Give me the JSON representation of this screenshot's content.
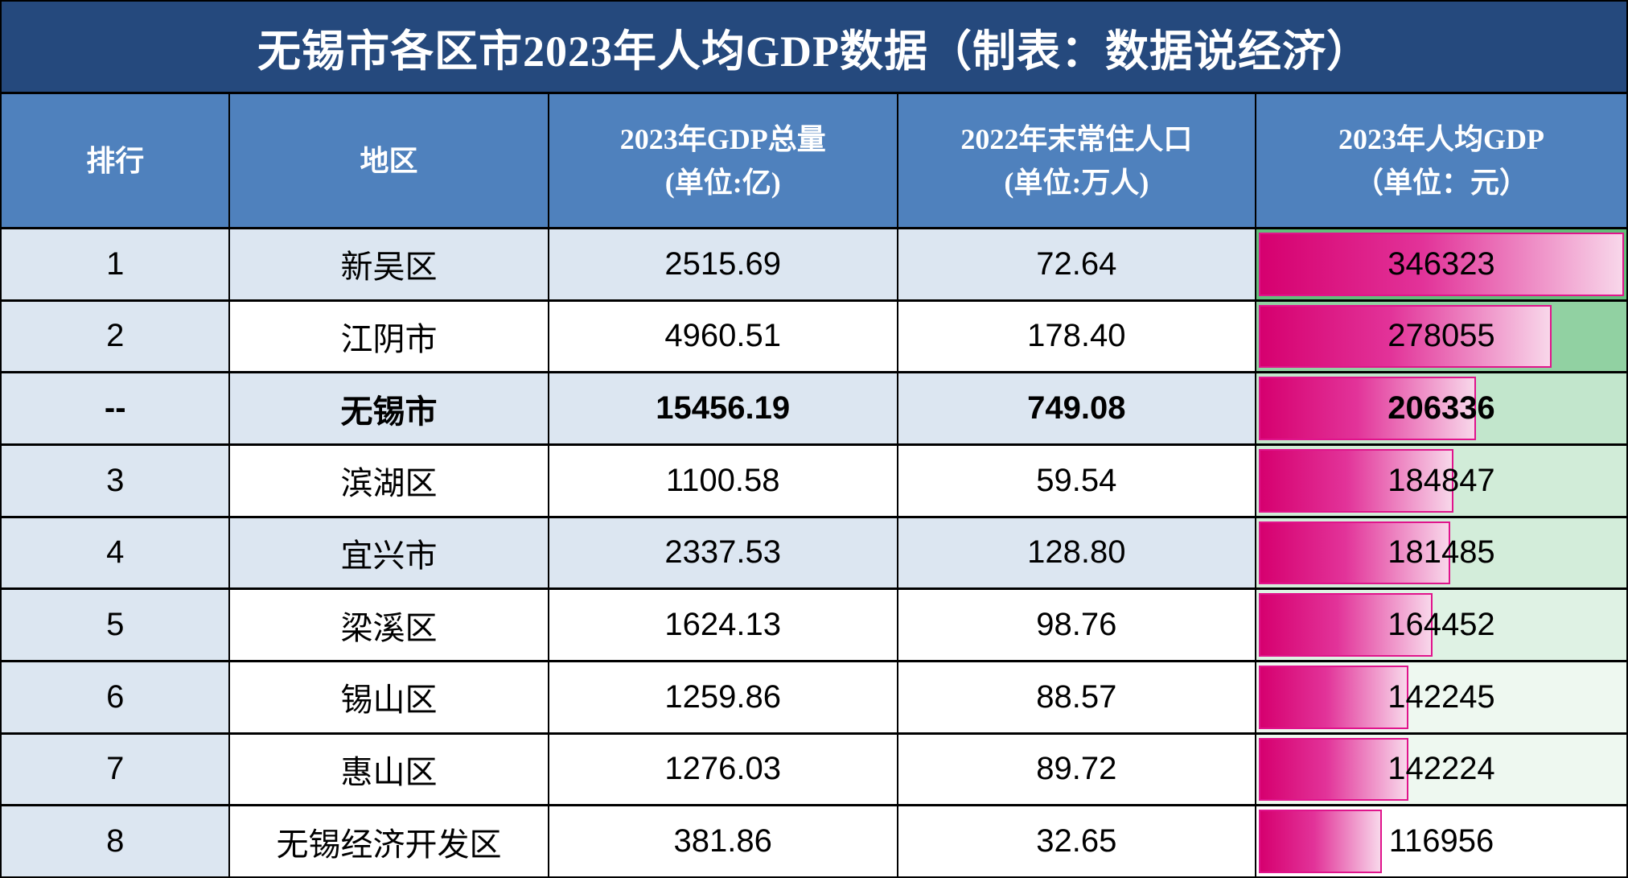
{
  "title": "无锡市各区市2023年人均GDP数据（制表：数据说经济）",
  "colors": {
    "title_bg": "#25497D",
    "header_bg": "#4F81BD",
    "shaded_row_bg": "#DCE6F1",
    "plain_row_bg": "#FFFFFF",
    "green_scale_max": "#63BE7B",
    "green_scale_min": "#FFFFFF",
    "bar_gradient_start": "#D6006F",
    "bar_gradient_mid": "#E23399",
    "bar_gradient_end": "#F8D7EA",
    "bar_border": "#E0148C",
    "grid_line": "#000000",
    "header_text": "#FFFFFF",
    "body_text": "#000000"
  },
  "header": {
    "cols": [
      {
        "line1": "排行",
        "line2": ""
      },
      {
        "line1": "地区",
        "line2": ""
      },
      {
        "line1": "2023年GDP总量",
        "line2": "(单位:亿)"
      },
      {
        "line1": "2022年末常住人口",
        "line2": "(单位:万人)"
      },
      {
        "line1": "2023年人均GDP",
        "line2": "（单位：元）"
      }
    ]
  },
  "chart_data": {
    "type": "table",
    "title": "无锡市各区市2023年人均GDP数据（制表：数据说经济）",
    "columns": [
      "排行",
      "地区",
      "2023年GDP总量(单位:亿)",
      "2022年末常住人口(单位:万人)",
      "2023年人均GDP（单位：元）"
    ],
    "notes": "人均GDP列含粉色数据条（长度与数值成正比，最大值346323为满格）及绿白双色色阶单元格底色（值越大越绿）；排行第三行为无锡市汇总行，加粗显示",
    "rows": [
      {
        "rank": "1",
        "region": "新吴区",
        "gdp": "2515.69",
        "population": "72.64",
        "percap": "346323",
        "percap_value": 346323,
        "shaded": true,
        "bold": false
      },
      {
        "rank": "2",
        "region": "江阴市",
        "gdp": "4960.51",
        "population": "178.40",
        "percap": "278055",
        "percap_value": 278055,
        "shaded": false,
        "bold": false
      },
      {
        "rank": "--",
        "region": "无锡市",
        "gdp": "15456.19",
        "population": "749.08",
        "percap": "206336",
        "percap_value": 206336,
        "shaded": true,
        "bold": true
      },
      {
        "rank": "3",
        "region": "滨湖区",
        "gdp": "1100.58",
        "population": "59.54",
        "percap": "184847",
        "percap_value": 184847,
        "shaded": false,
        "bold": false
      },
      {
        "rank": "4",
        "region": "宜兴市",
        "gdp": "2337.53",
        "population": "128.80",
        "percap": "181485",
        "percap_value": 181485,
        "shaded": true,
        "bold": false
      },
      {
        "rank": "5",
        "region": "梁溪区",
        "gdp": "1624.13",
        "population": "98.76",
        "percap": "164452",
        "percap_value": 164452,
        "shaded": false,
        "bold": false
      },
      {
        "rank": "6",
        "region": "锡山区",
        "gdp": "1259.86",
        "population": "88.57",
        "percap": "142245",
        "percap_value": 142245,
        "shaded": false,
        "bold": false
      },
      {
        "rank": "7",
        "region": "惠山区",
        "gdp": "1276.03",
        "population": "89.72",
        "percap": "142224",
        "percap_value": 142224,
        "shaded": false,
        "bold": false
      },
      {
        "rank": "8",
        "region": "无锡经济开发区",
        "gdp": "381.86",
        "population": "32.65",
        "percap": "116956",
        "percap_value": 116956,
        "shaded": false,
        "bold": false
      }
    ]
  }
}
